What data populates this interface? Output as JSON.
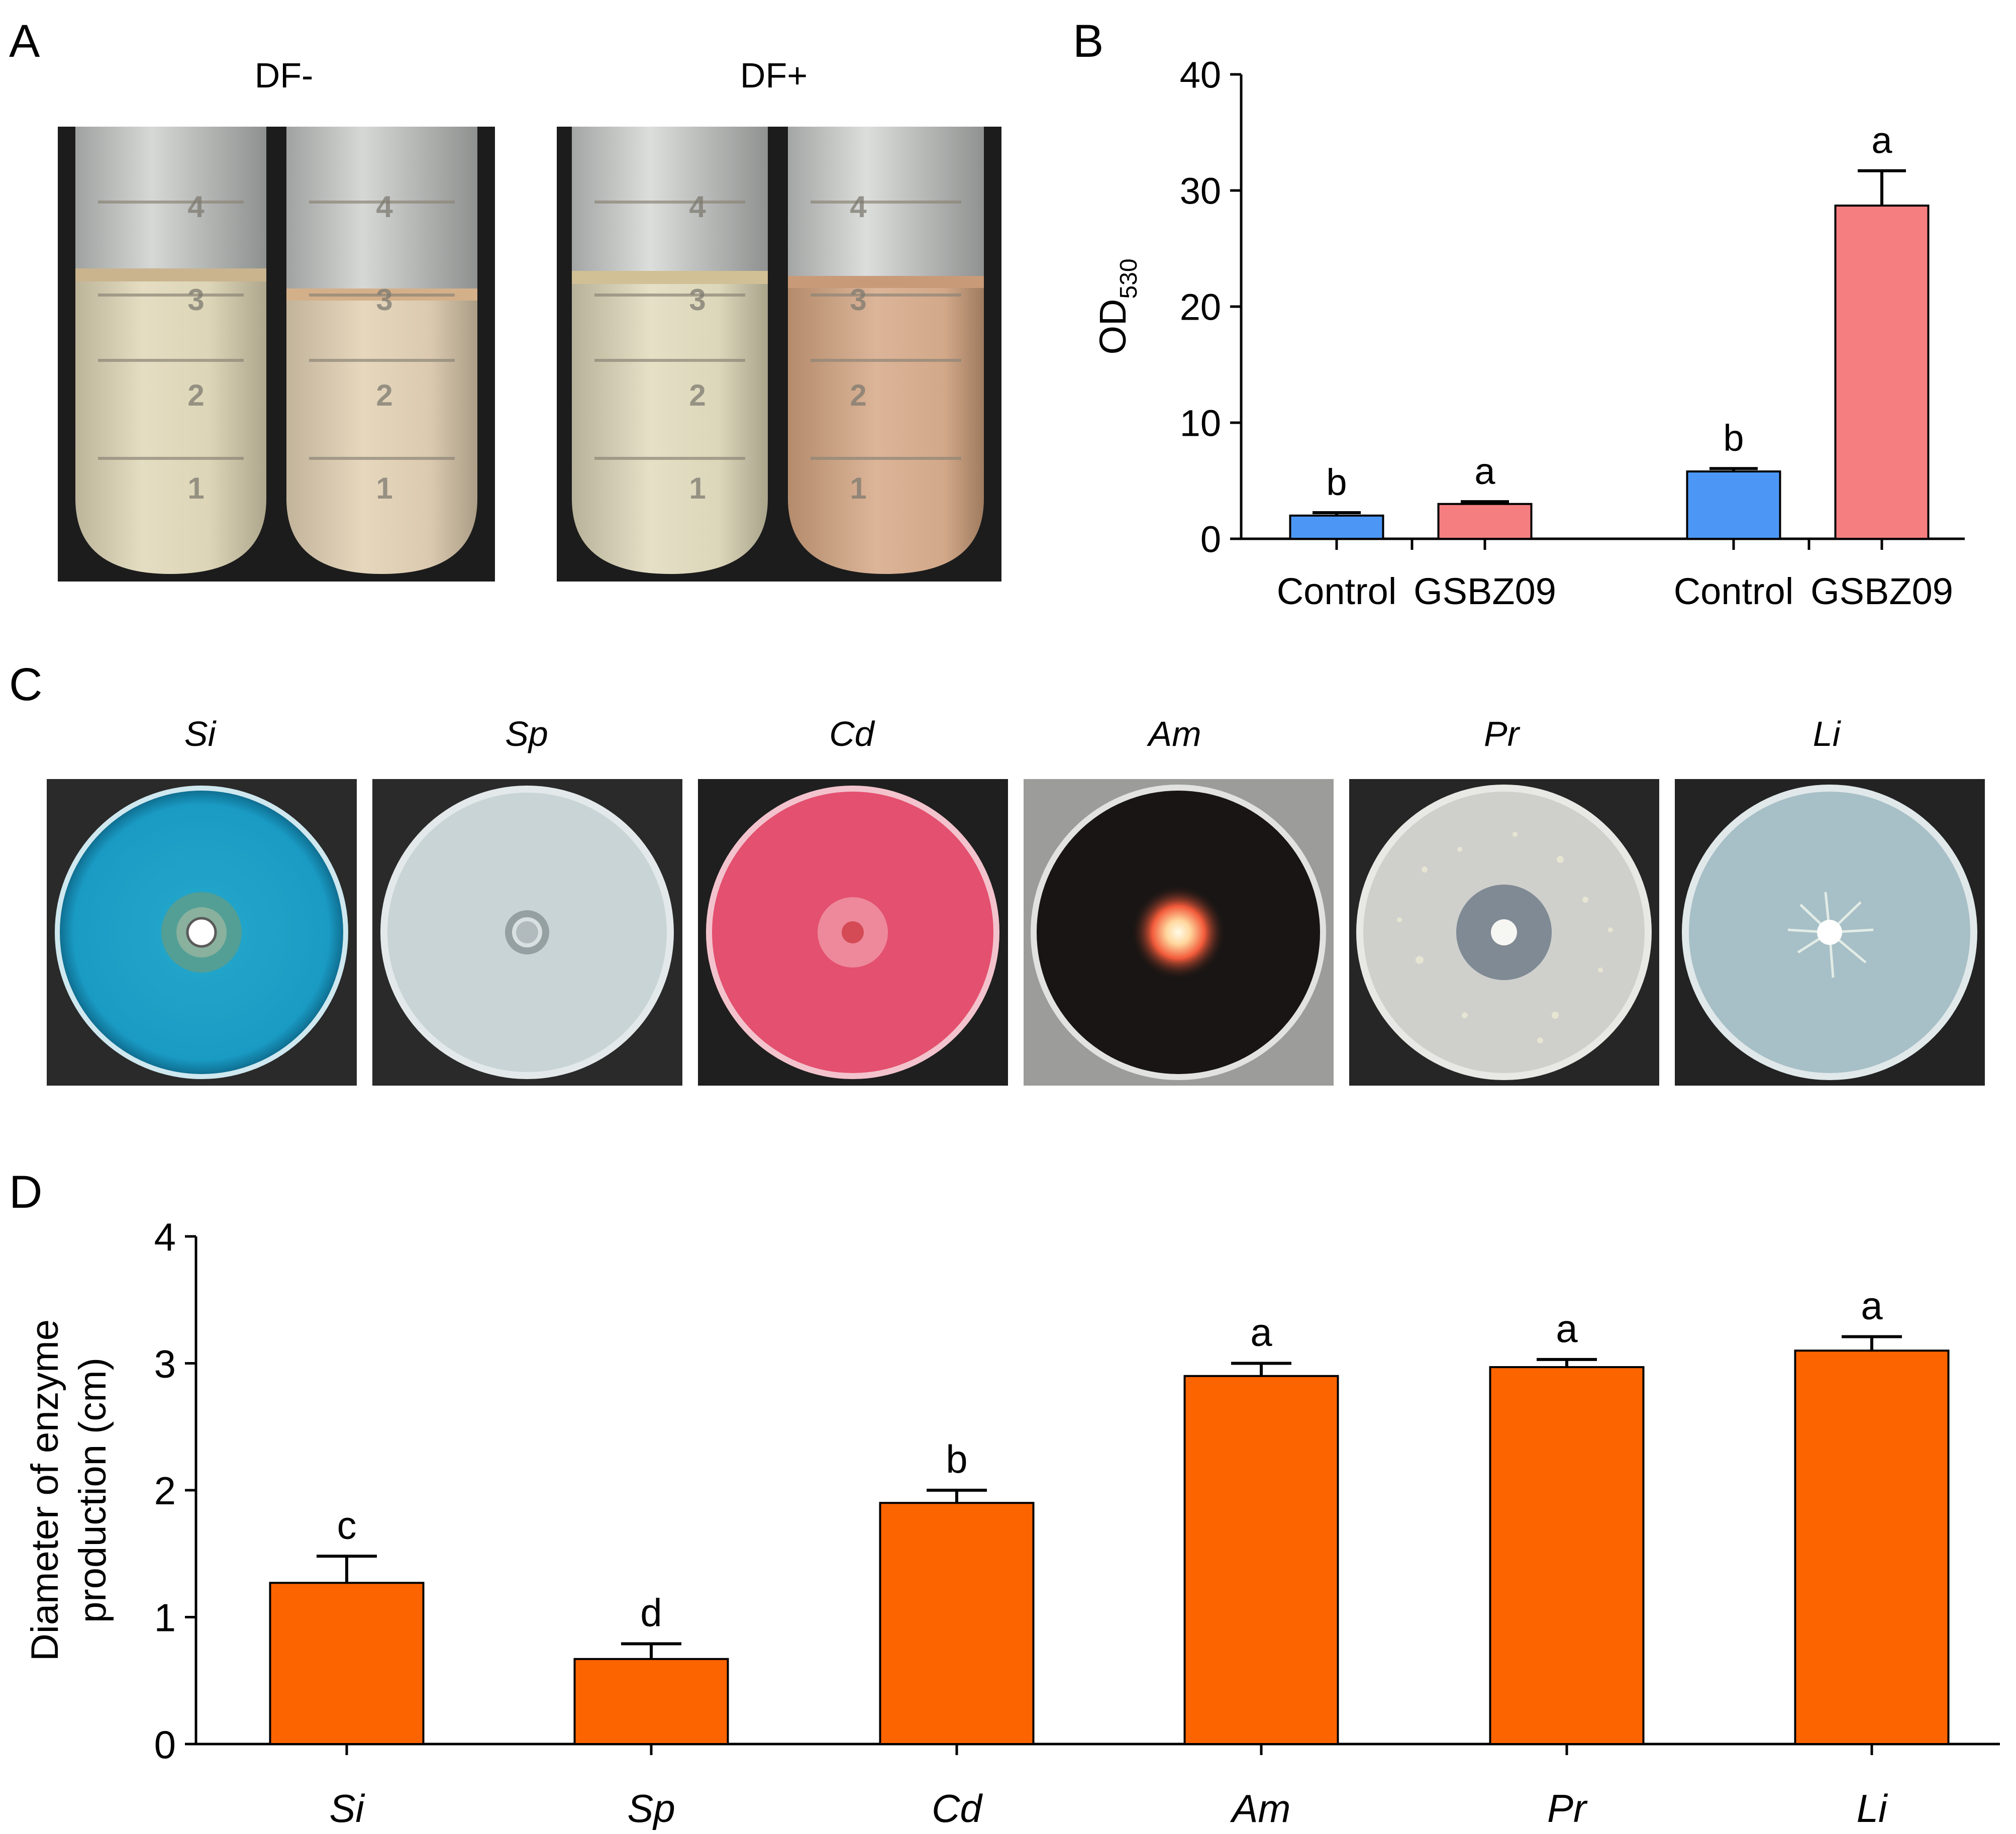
{
  "panels": {
    "a": "A",
    "b": "B",
    "c": "C",
    "d": "D"
  },
  "panel_a": {
    "labels": [
      "DF-",
      "DF+"
    ],
    "tube_marks": [
      "4",
      "3",
      "2",
      "1"
    ]
  },
  "panel_c": {
    "labels": [
      "Si",
      "Sp",
      "Cd",
      "Am",
      "Pr",
      "Li"
    ]
  },
  "colors": {
    "blue": "#4c97f5",
    "pink": "#f57f80",
    "orange": "#fc6400"
  },
  "chart_data": [
    {
      "id": "B",
      "type": "bar",
      "categories": [
        "Control",
        "GSBZ09",
        "Control",
        "GSBZ09"
      ],
      "values": [
        2.0,
        3.0,
        5.8,
        28.7
      ],
      "errors": [
        0.25,
        0.2,
        0.25,
        3.0
      ],
      "significance": [
        "b",
        "a",
        "b",
        "a"
      ],
      "bar_colors": [
        "blue",
        "pink",
        "blue",
        "pink"
      ],
      "title": "",
      "xlabel": "",
      "ylabel": "OD",
      "ylabel_sub": "530",
      "ylim": [
        0,
        40
      ],
      "yticks": [
        0,
        10,
        20,
        30,
        40
      ],
      "grid": false
    },
    {
      "id": "D",
      "type": "bar",
      "categories": [
        "Si",
        "Sp",
        "Cd",
        "Am",
        "Pr",
        "Li"
      ],
      "values": [
        1.27,
        0.67,
        1.9,
        2.9,
        2.97,
        3.1
      ],
      "errors": [
        0.21,
        0.12,
        0.1,
        0.1,
        0.06,
        0.11
      ],
      "significance": [
        "c",
        "d",
        "b",
        "a",
        "a",
        "a"
      ],
      "bar_colors": [
        "orange",
        "orange",
        "orange",
        "orange",
        "orange",
        "orange"
      ],
      "title": "",
      "xlabel": "",
      "ylabel_lines": [
        "Diameter of enzyme",
        "production (cm)"
      ],
      "ylim": [
        0,
        4
      ],
      "yticks": [
        0,
        1,
        2,
        3,
        4
      ],
      "grid": false
    }
  ]
}
